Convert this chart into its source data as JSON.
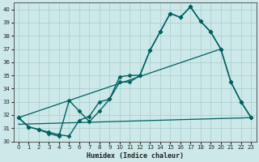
{
  "xlabel": "Humidex (Indice chaleur)",
  "xlim": [
    -0.5,
    23.5
  ],
  "ylim": [
    30,
    40.5
  ],
  "yticks": [
    30,
    31,
    32,
    33,
    34,
    35,
    36,
    37,
    38,
    39,
    40
  ],
  "xticks": [
    0,
    1,
    2,
    3,
    4,
    5,
    6,
    7,
    8,
    9,
    10,
    11,
    12,
    13,
    14,
    15,
    16,
    17,
    18,
    19,
    20,
    21,
    22,
    23
  ],
  "background_color": "#cce8e8",
  "grid_color": "#aacccc",
  "line_color": "#006060",
  "lines": [
    {
      "x": [
        0,
        1,
        2,
        3,
        4,
        5,
        6,
        7,
        8,
        9,
        10,
        11,
        12,
        13,
        14,
        15,
        16,
        17,
        18,
        19,
        20,
        21,
        22,
        23
      ],
      "y": [
        31.8,
        31.1,
        30.9,
        30.7,
        30.5,
        30.4,
        31.6,
        31.9,
        33.0,
        33.2,
        34.9,
        35.0,
        35.0,
        36.9,
        38.3,
        39.7,
        39.4,
        40.2,
        39.1,
        38.3,
        37.0,
        34.5,
        33.0,
        31.8
      ],
      "marker": "D",
      "markersize": 2.5,
      "linewidth": 1.0,
      "has_marker": true
    },
    {
      "x": [
        0,
        1,
        2,
        3,
        4,
        5,
        6,
        7,
        8,
        9,
        10,
        11,
        12,
        13,
        14,
        15,
        16,
        17,
        18,
        19,
        20,
        21,
        22,
        23
      ],
      "y": [
        31.8,
        31.1,
        30.9,
        30.6,
        30.4,
        33.1,
        32.3,
        31.5,
        32.3,
        33.2,
        34.5,
        34.5,
        35.0,
        36.9,
        38.3,
        39.7,
        39.4,
        40.2,
        39.1,
        38.3,
        37.0,
        34.5,
        33.0,
        31.8
      ],
      "marker": "D",
      "markersize": 2.5,
      "linewidth": 1.0,
      "has_marker": true
    },
    {
      "x": [
        0,
        23
      ],
      "y": [
        31.3,
        31.8
      ],
      "marker": null,
      "markersize": 0,
      "linewidth": 0.9,
      "has_marker": false
    },
    {
      "x": [
        0,
        20
      ],
      "y": [
        31.8,
        37.0
      ],
      "marker": null,
      "markersize": 0,
      "linewidth": 0.9,
      "has_marker": false
    }
  ]
}
